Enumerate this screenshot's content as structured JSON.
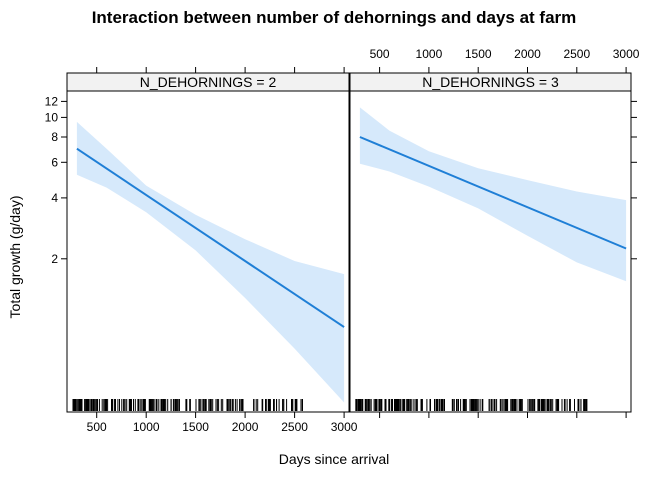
{
  "chart_data": {
    "type": "line",
    "title": "Interaction between number of dehornings and days at farm",
    "xlabel": "Days since arrival",
    "ylabel": "Total growth (g/day)",
    "x_ticks": [
      500,
      1000,
      1500,
      2000,
      2500,
      3000
    ],
    "y_ticks": [
      2,
      4,
      6,
      8,
      10,
      12
    ],
    "y_scale": "log",
    "xlim": [
      200,
      3050
    ],
    "ylim": [
      0.35,
      13.5
    ],
    "colors": {
      "line": "#1f7fd6",
      "band": "#d6e9fb",
      "strip_bg": "#f2f2f2"
    },
    "panels": [
      {
        "strip_label": "N_DEHORNINGS = 2",
        "fit": {
          "x": [
            300,
            3000
          ],
          "y": [
            7.0,
            0.92
          ]
        },
        "lower": {
          "x": [
            300,
            600,
            1000,
            1500,
            2000,
            2500,
            3000
          ],
          "y": [
            5.2,
            4.5,
            3.4,
            2.2,
            1.28,
            0.72,
            0.39
          ]
        },
        "upper": {
          "x": [
            300,
            600,
            1000,
            1500,
            2000,
            2500,
            3000
          ],
          "y": [
            9.5,
            7.0,
            4.6,
            3.3,
            2.5,
            1.95,
            1.68
          ]
        }
      },
      {
        "strip_label": "N_DEHORNINGS = 3",
        "fit": {
          "x": [
            300,
            3000
          ],
          "y": [
            8.0,
            2.25
          ]
        },
        "lower": {
          "x": [
            300,
            600,
            1000,
            1500,
            2000,
            2500,
            3000
          ],
          "y": [
            5.9,
            5.4,
            4.55,
            3.55,
            2.6,
            1.92,
            1.55
          ]
        },
        "upper": {
          "x": [
            300,
            600,
            1000,
            1500,
            2000,
            2500,
            3000
          ],
          "y": [
            11.2,
            8.6,
            6.8,
            5.6,
            4.9,
            4.3,
            3.9
          ]
        }
      }
    ]
  }
}
